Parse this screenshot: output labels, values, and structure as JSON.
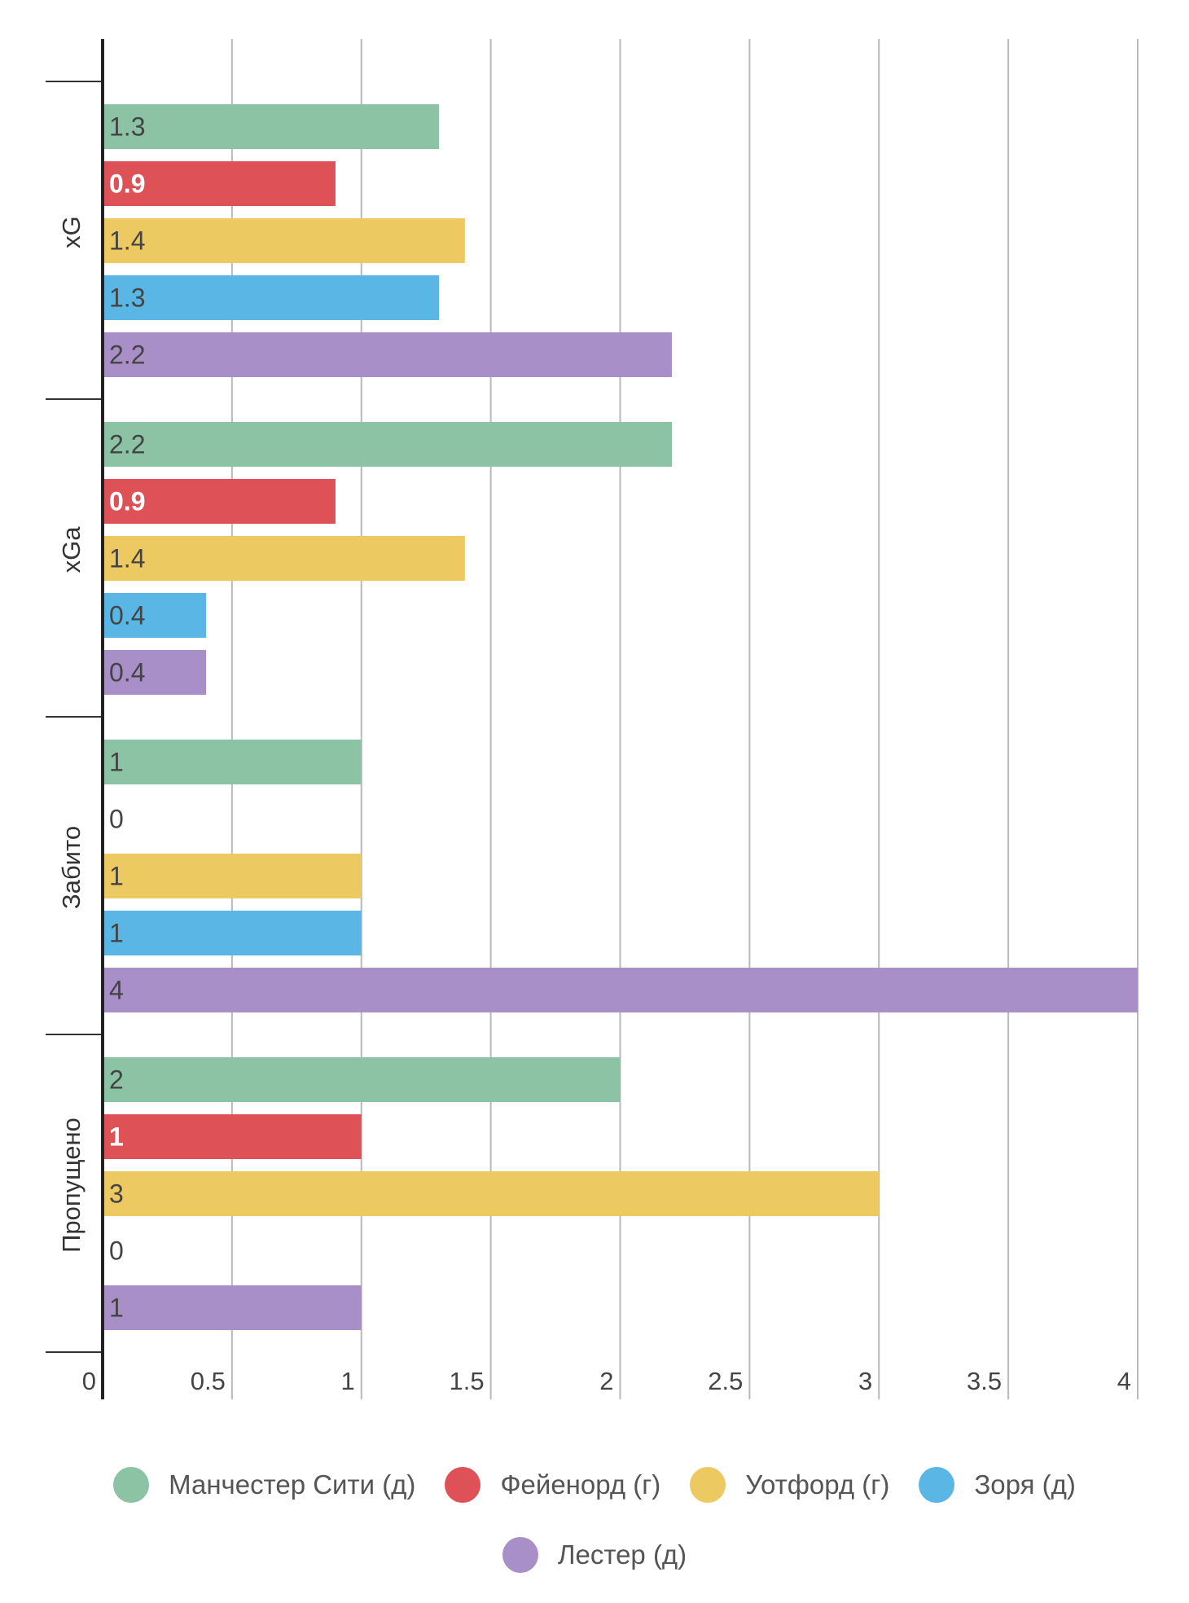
{
  "chart_data": {
    "type": "bar",
    "orientation": "horizontal",
    "categories": [
      "xG",
      "xGa",
      "Забито",
      "Пропущено"
    ],
    "series": [
      {
        "name": "Манчестер Сити (д)",
        "color": "#8cc3a5",
        "values": [
          1.3,
          2.2,
          1,
          2
        ]
      },
      {
        "name": "Фейенорд (г)",
        "color": "#de5156",
        "values": [
          0.9,
          0.9,
          0,
          1
        ]
      },
      {
        "name": "Уотфорд (г)",
        "color": "#edc962",
        "values": [
          1.4,
          1.4,
          1,
          3
        ]
      },
      {
        "name": "Зоря (д)",
        "color": "#5ab6e4",
        "values": [
          1.3,
          0.4,
          1,
          0
        ]
      },
      {
        "name": "Лестер (д)",
        "color": "#a98fc8",
        "values": [
          2.2,
          0.4,
          4,
          1
        ]
      }
    ],
    "data_labels": [
      [
        "1.3",
        "2.2",
        "1",
        "2"
      ],
      [
        "0.9",
        "0.9",
        "0",
        "1"
      ],
      [
        "1.4",
        "1.4",
        "1",
        "3"
      ],
      [
        "1.3",
        "0.4",
        "1",
        "0"
      ],
      [
        "2.2",
        "0.4",
        "4",
        "1"
      ]
    ],
    "xlim": [
      0,
      4
    ],
    "xticks": [
      "0",
      "0.5",
      "1",
      "1.5",
      "2",
      "2.5",
      "3",
      "3.5",
      "4"
    ],
    "grid": "vertical",
    "legend_position": "bottom"
  }
}
